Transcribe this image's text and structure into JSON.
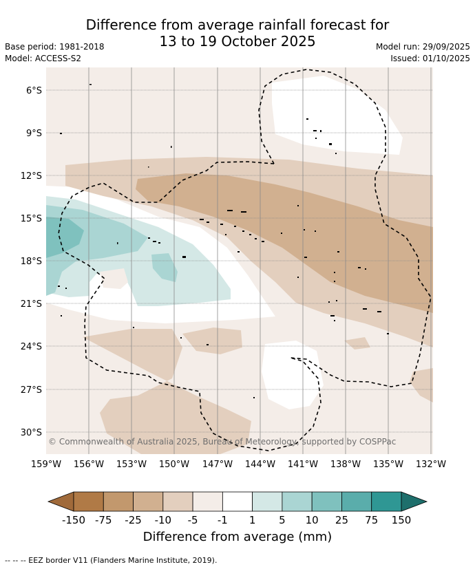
{
  "title_line1": "Difference from average rainfall forecast for",
  "title_line2": "13 to 19 October 2025",
  "base_period": "Base period: 1981-2018",
  "model": "Model: ACCESS-S2",
  "model_run": "Model run: 29/09/2025",
  "issued": "Issued: 01/10/2025",
  "copyright": "© Commonwealth of Australia 2025, Bureau of Meteorology, supported by COSPPac",
  "lat_labels": [
    "6°S",
    "9°S",
    "12°S",
    "15°S",
    "18°S",
    "21°S",
    "24°S",
    "27°S",
    "30°S"
  ],
  "lon_labels": [
    "159°W",
    "156°W",
    "153°W",
    "150°W",
    "147°W",
    "144°W",
    "141°W",
    "138°W",
    "135°W",
    "132°W"
  ],
  "colorbar": {
    "labels": [
      "-150",
      "-75",
      "-25",
      "-10",
      "-5",
      "-1",
      "1",
      "5",
      "10",
      "25",
      "75",
      "150"
    ],
    "colors": [
      "#a06a3a",
      "#b07a46",
      "#c2986d",
      "#d1b090",
      "#e3cfbe",
      "#f4ede8",
      "#ffffff",
      "#d4e8e6",
      "#aad5d3",
      "#7fc1be",
      "#5aadab",
      "#2f9794",
      "#1e6f6c"
    ],
    "title": "Difference from average (mm)"
  },
  "footer": "--  --  -- EEZ border V11 (Flanders Marine Institute, 2019)."
}
